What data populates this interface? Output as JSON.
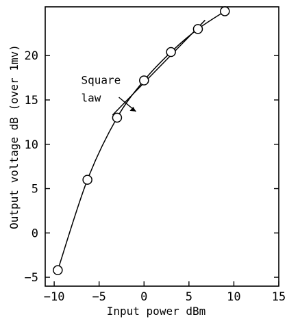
{
  "chart_data": {
    "type": "line",
    "title": "",
    "xlabel": "Input power dBm",
    "ylabel": "Output voltage dB (over 1mv)",
    "xlim": [
      -11,
      15
    ],
    "ylim": [
      -6,
      25.5
    ],
    "xticks": [
      -10,
      -5,
      0,
      5,
      10,
      15
    ],
    "yticks": [
      -5,
      0,
      5,
      10,
      15,
      20
    ],
    "grid": false,
    "series": [
      {
        "values": [
          {
            "x": -9.6,
            "y": -4.2
          },
          {
            "x": -6.3,
            "y": 6.0
          },
          {
            "x": -3.0,
            "y": 13.0
          },
          {
            "x": 0.0,
            "y": 17.2
          },
          {
            "x": 3.0,
            "y": 20.4
          },
          {
            "x": 6.0,
            "y": 23.0
          },
          {
            "x": 9.0,
            "y": 25.0
          }
        ],
        "markers": "open-circle"
      },
      {
        "label": "Square law",
        "style": "straight reference line",
        "values": [
          {
            "x": -3.5,
            "y": 13.3
          },
          {
            "x": 6.8,
            "y": 24.0
          }
        ]
      }
    ],
    "annotations": [
      {
        "text": "Square",
        "x": -7.0,
        "y": 16.8
      },
      {
        "text": "law",
        "x": -7.0,
        "y": 14.8
      }
    ]
  }
}
